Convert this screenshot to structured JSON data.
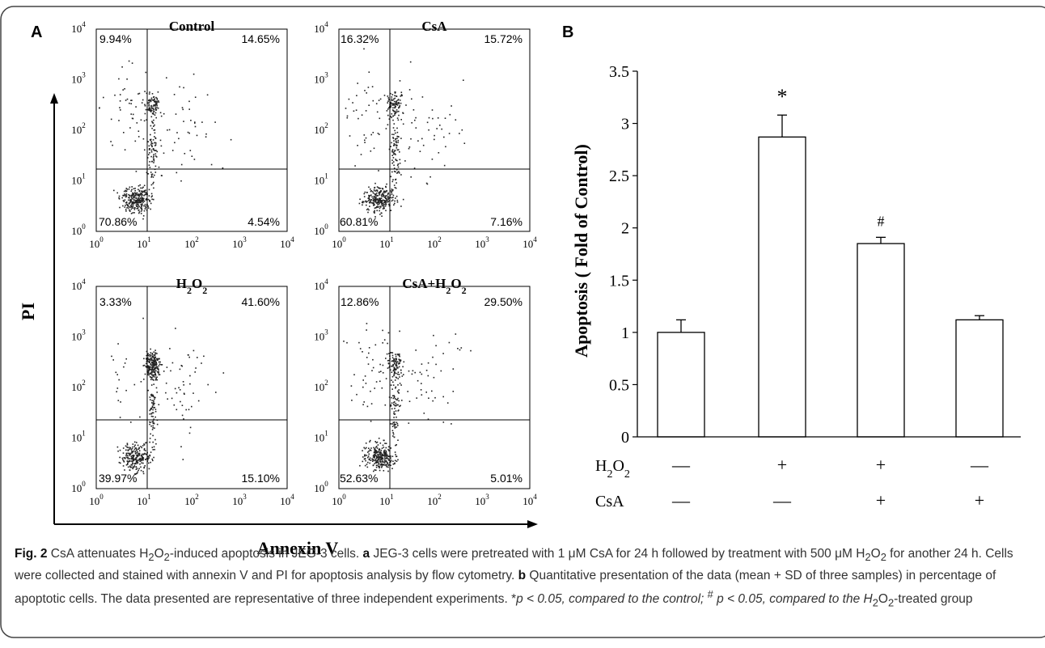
{
  "panel_a": {
    "letter": "A",
    "y_axis_title": "PI",
    "x_axis_title": "Annexin V",
    "plots": [
      {
        "title": "Control",
        "quadrants": {
          "ul": "9.94%",
          "ur": "14.65%",
          "ll": "70.86%",
          "lr": "4.54%"
        }
      },
      {
        "title": "CsA",
        "quadrants": {
          "ul": "16.32%",
          "ur": "15.72%",
          "ll": "60.81%",
          "lr": "7.16%"
        }
      },
      {
        "title": "H2O2",
        "quadrants": {
          "ul": "3.33%",
          "ur": "41.60%",
          "ll": "39.97%",
          "lr": "15.10%"
        }
      },
      {
        "title": "CsA+H2O2",
        "quadrants": {
          "ul": "12.86%",
          "ur": "29.50%",
          "ll": "52.63%",
          "lr": "5.01%"
        }
      }
    ],
    "log_ticks": {
      "base": "10",
      "exponents": [
        "0",
        "1",
        "2",
        "3",
        "4"
      ]
    }
  },
  "chart_data": {
    "type": "bar",
    "panel_letter": "B",
    "ylabel": "Apoptosis ( Fold of Control)",
    "ylim": [
      0,
      3.5
    ],
    "y_ticks": [
      "0",
      "0.5",
      "1",
      "1.5",
      "2",
      "2.5",
      "3",
      "3.5"
    ],
    "values": [
      1.0,
      2.87,
      1.85,
      1.12
    ],
    "errors": [
      0.12,
      0.21,
      0.06,
      0.04
    ],
    "significance": [
      "",
      "*",
      "#",
      ""
    ],
    "bar_fill": "#ffffff",
    "stroke": "#000000",
    "treatments": [
      {
        "label": "H2O2",
        "signs": [
          "—",
          "+",
          "+",
          "—"
        ]
      },
      {
        "label": "CsA",
        "signs": [
          "—",
          "—",
          "+",
          "+"
        ]
      }
    ]
  },
  "caption": {
    "fig_label": "Fig. 2",
    "title_part1": "CsA attenuates H",
    "title_part2": "-induced apoptosis in JEG-3 cells.",
    "a_letter": "a",
    "a_text_1": "JEG-3 cells were pretreated with 1 μM CsA for 24 h followed by treatment with 500 μM H",
    "a_text_2": " for another 24 h. Cells were collected and stained with annexin V and PI for apoptosis analysis by flow cytometry.",
    "b_letter": "b",
    "b_text": "Quantitative presentation of the data (mean + SD of three samples) in percentage of apoptotic cells. The data presented are representative of three independent experiments. *",
    "p1": "p < 0.05, compared to the control; ",
    "sup_hash": "#",
    "p2": " p < 0.05, compared to the H",
    "end_text": "-treated group",
    "sub2": "2"
  }
}
